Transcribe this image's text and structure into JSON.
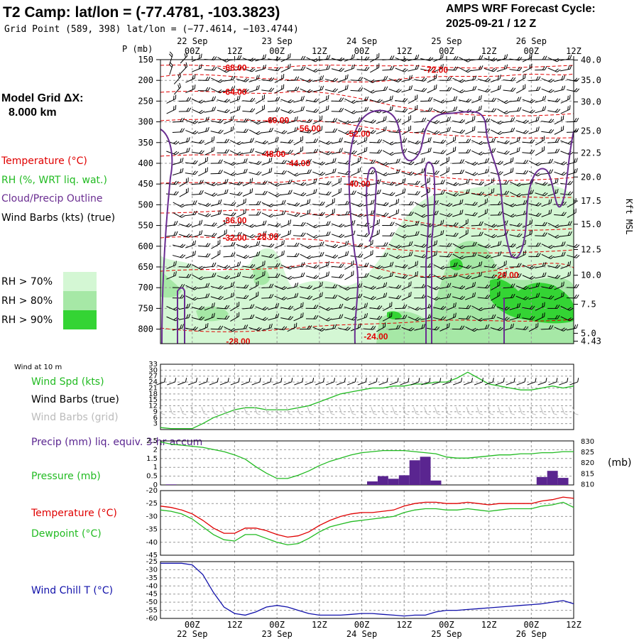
{
  "header": {
    "title": "T2 Camp:  lat/lon = (-77.4781, -103.3823)",
    "subtitle": "Grid Point (589, 398) lat/lon = (−77.4614, −103.4744)",
    "cycle_line1": "AMPS WRF Forecast Cycle:",
    "cycle_line2": "2025-09-21 / 12  Z"
  },
  "left_panel": {
    "model_grid_label": "Model Grid ΔX:",
    "model_grid_value": "8.000 km",
    "legend_temperature": "Temperature (°C)",
    "legend_rh": "RH (%, WRT liq. wat.)",
    "legend_cloud": "Cloud/Precip Outline",
    "legend_wind": "Wind Barbs (kts) (true)",
    "rh_legend": [
      "RH > 70%",
      "RH > 80%",
      "RH > 90%"
    ]
  },
  "time_axis": {
    "tick_labels": [
      "00Z",
      "12Z",
      "00Z",
      "12Z",
      "00Z",
      "12Z",
      "00Z",
      "12Z",
      "00Z",
      "12Z"
    ],
    "date_labels": [
      "22 Sep",
      "23 Sep",
      "24 Sep",
      "25 Sep",
      "26 Sep"
    ],
    "start_hour": -9,
    "end_hour": 108
  },
  "colors": {
    "temperature": "#e00000",
    "cloud": "#6a2d91",
    "rh70": "#d4f7d4",
    "rh80": "#a6e8a6",
    "rh90": "#34d434",
    "wind_speed": "#22bb22",
    "precip": "#5a2590",
    "dewpoint": "#22bb22",
    "wind_chill": "#1111aa",
    "grid_barbs": "#bbbbbb"
  },
  "chart_data": [
    {
      "type": "heatmap",
      "title": "Time-height cross section",
      "ylabel": "P (mb)",
      "ylabel_right": "Kft MSL",
      "pressure_ticks": [
        150,
        200,
        250,
        300,
        350,
        400,
        450,
        500,
        550,
        600,
        650,
        700,
        750,
        800
      ],
      "ylim": [
        150,
        835
      ],
      "height_ticks": [
        {
          "p": 151,
          "label": "40.0"
        },
        {
          "p": 200,
          "label": "35.0"
        },
        {
          "p": 252,
          "label": "30.0"
        },
        {
          "p": 322,
          "label": "25.0"
        },
        {
          "p": 375,
          "label": "22.5"
        },
        {
          "p": 433,
          "label": "20.0"
        },
        {
          "p": 491,
          "label": "17.5"
        },
        {
          "p": 547,
          "label": "15.0"
        },
        {
          "p": 608,
          "label": "12.5"
        },
        {
          "p": 670,
          "label": "10.0"
        },
        {
          "p": 740,
          "label": "7.5"
        },
        {
          "p": 810,
          "label": "5.0"
        },
        {
          "p": 829,
          "label": "4.43"
        }
      ],
      "temperature_isotherm_labels": [
        {
          "label": "-68.00",
          "hour": 12,
          "p": 170
        },
        {
          "label": "-64.00",
          "hour": 12,
          "p": 228
        },
        {
          "label": "-60.00",
          "hour": 24,
          "p": 296
        },
        {
          "label": "-56.00",
          "hour": 33,
          "p": 316
        },
        {
          "label": "-52.00",
          "hour": 47,
          "p": 329
        },
        {
          "label": "-48.00",
          "hour": 23,
          "p": 378
        },
        {
          "label": "-44.00",
          "hour": 30,
          "p": 400
        },
        {
          "label": "-40.00",
          "hour": 47,
          "p": 450
        },
        {
          "label": "-72.00",
          "hour": 69,
          "p": 175
        },
        {
          "label": "-36.00",
          "hour": 12,
          "p": 538
        },
        {
          "label": "-32.00",
          "hour": 12,
          "p": 580
        },
        {
          "label": "-28.00",
          "hour": 21,
          "p": 576
        },
        {
          "label": "-20.00",
          "hour": 89,
          "p": 670
        },
        {
          "label": "-24.00",
          "hour": 52,
          "p": 818
        },
        {
          "label": "-28.00",
          "hour": 13,
          "p": 830
        }
      ]
    },
    {
      "type": "line",
      "title": "Wind at 10 m",
      "legend": [
        "Wind Spd (kts)",
        "Wind Barbs (true)",
        "Wind Barbs (grid)"
      ],
      "y_ticks": [
        3,
        6,
        9,
        12,
        15,
        18,
        21,
        24,
        27,
        30,
        33
      ],
      "ylim": [
        0,
        33
      ],
      "x_hours": [
        -9,
        -6,
        -3,
        0,
        3,
        6,
        9,
        12,
        15,
        18,
        21,
        24,
        27,
        30,
        33,
        36,
        39,
        42,
        45,
        48,
        51,
        54,
        57,
        60,
        63,
        66,
        69,
        72,
        75,
        78,
        81,
        84,
        87,
        90,
        93,
        96,
        99,
        102,
        105,
        108
      ],
      "series": [
        {
          "name": "Wind Spd (kts)",
          "values": [
            1,
            0.5,
            0.5,
            0.5,
            3,
            6,
            8,
            10,
            11,
            11,
            10,
            10,
            10,
            11,
            12,
            14,
            16,
            18,
            19,
            20,
            21,
            21,
            22,
            22,
            23,
            23,
            24,
            24,
            26,
            29,
            26,
            23,
            22,
            21,
            20,
            20,
            21,
            22,
            21,
            22
          ]
        }
      ]
    },
    {
      "type": "bar",
      "title": "Precip / Pressure",
      "legend": [
        "Precip (mm) liq. equiv. 3-hr accum",
        "Pressure (mb)"
      ],
      "y_ticks_left": [
        0.0,
        0.5,
        1.0,
        1.5,
        2.0,
        2.5
      ],
      "ylim_left": [
        0,
        2.5
      ],
      "y_ticks_right": [
        810,
        815,
        820,
        825,
        830
      ],
      "ylim_right": [
        809.5,
        830
      ],
      "right_unit": "(mb)",
      "precip": [
        {
          "hour": -6,
          "value": 0.03
        },
        {
          "hour": 51,
          "value": 0.2
        },
        {
          "hour": 54,
          "value": 0.5
        },
        {
          "hour": 57,
          "value": 0.35
        },
        {
          "hour": 60,
          "value": 0.55
        },
        {
          "hour": 63,
          "value": 1.4
        },
        {
          "hour": 66,
          "value": 1.6
        },
        {
          "hour": 69,
          "value": 0.25
        },
        {
          "hour": 99,
          "value": 0.45
        },
        {
          "hour": 102,
          "value": 0.8
        },
        {
          "hour": 105,
          "value": 0.4
        }
      ],
      "pressure": {
        "x_hours": [
          -9,
          -6,
          -3,
          0,
          3,
          6,
          9,
          12,
          15,
          18,
          21,
          24,
          27,
          30,
          33,
          36,
          39,
          42,
          45,
          48,
          51,
          54,
          57,
          60,
          63,
          66,
          69,
          72,
          75,
          78,
          81,
          84,
          87,
          90,
          93,
          96,
          99,
          102,
          105,
          108
        ],
        "values": [
          829.5,
          828.5,
          828,
          827.5,
          827,
          826,
          825,
          823.5,
          821.5,
          818,
          815,
          812.5,
          812.5,
          814,
          816,
          818.5,
          820.5,
          822,
          823.5,
          824.5,
          825,
          825.5,
          825.5,
          825.5,
          825,
          824.5,
          824,
          822.5,
          822,
          822,
          822.5,
          823,
          823.5,
          823.5,
          824,
          824,
          824.5,
          824.5,
          825,
          825
        ]
      }
    },
    {
      "type": "line",
      "title": "Temperature / Dewpoint",
      "legend": [
        "Temperature (°C)",
        "Dewpoint (°C)"
      ],
      "y_ticks": [
        -45,
        -40,
        -35,
        -30,
        -25,
        -20
      ],
      "ylim": [
        -45,
        -20
      ],
      "x_hours": [
        -9,
        -6,
        -3,
        0,
        3,
        6,
        9,
        12,
        15,
        18,
        21,
        24,
        27,
        30,
        33,
        36,
        39,
        42,
        45,
        48,
        51,
        54,
        57,
        60,
        63,
        66,
        69,
        72,
        75,
        78,
        81,
        84,
        87,
        90,
        93,
        96,
        99,
        102,
        105,
        108
      ],
      "series": [
        {
          "name": "Temperature (°C)",
          "values": [
            -26,
            -26.5,
            -27.5,
            -29,
            -31.5,
            -34.5,
            -36.5,
            -36.5,
            -34.5,
            -34.5,
            -35.5,
            -37,
            -38,
            -37.5,
            -36,
            -33.5,
            -31.5,
            -30,
            -29,
            -28.5,
            -28.5,
            -28,
            -27.5,
            -26,
            -25,
            -24.5,
            -24.5,
            -25,
            -25,
            -24.5,
            -25,
            -25.5,
            -25,
            -25,
            -25,
            -25,
            -24,
            -23.5,
            -22.5,
            -23
          ]
        },
        {
          "name": "Dewpoint (°C)",
          "values": [
            -27.5,
            -28,
            -29,
            -31,
            -34,
            -37,
            -39,
            -39.5,
            -37,
            -37,
            -38.5,
            -40,
            -41,
            -40.5,
            -38.5,
            -36,
            -34,
            -33,
            -32,
            -31.5,
            -31,
            -30.5,
            -30,
            -28.5,
            -27.5,
            -27,
            -27,
            -27.5,
            -27.5,
            -27,
            -27.5,
            -28,
            -27.5,
            -27,
            -27,
            -27,
            -26,
            -25.5,
            -24.5,
            -26.5
          ]
        }
      ]
    },
    {
      "type": "line",
      "title": "Wind Chill",
      "legend": [
        "Wind Chill T (°C)"
      ],
      "y_ticks": [
        -60,
        -55,
        -50,
        -45,
        -40,
        -35,
        -30,
        -25
      ],
      "ylim": [
        -60,
        -25
      ],
      "x_hours": [
        -9,
        -6,
        -3,
        0,
        3,
        6,
        9,
        12,
        15,
        18,
        21,
        24,
        27,
        30,
        33,
        36,
        39,
        42,
        45,
        48,
        51,
        54,
        57,
        60,
        63,
        66,
        69,
        72,
        75,
        78,
        81,
        84,
        87,
        90,
        93,
        96,
        99,
        102,
        105,
        108
      ],
      "series": [
        {
          "name": "Wind Chill T (°C)",
          "values": [
            -26,
            -26,
            -26,
            -27,
            -33,
            -44,
            -53,
            -57,
            -58,
            -56,
            -53,
            -52,
            -53,
            -55,
            -57,
            -58,
            -58,
            -58,
            -57.5,
            -57,
            -57,
            -57.5,
            -58,
            -58.5,
            -58,
            -58,
            -56,
            -55,
            -55,
            -54.5,
            -54,
            -53.5,
            -53,
            -52.5,
            -52,
            -51.5,
            -51,
            -50,
            -49,
            -51
          ]
        }
      ]
    }
  ]
}
